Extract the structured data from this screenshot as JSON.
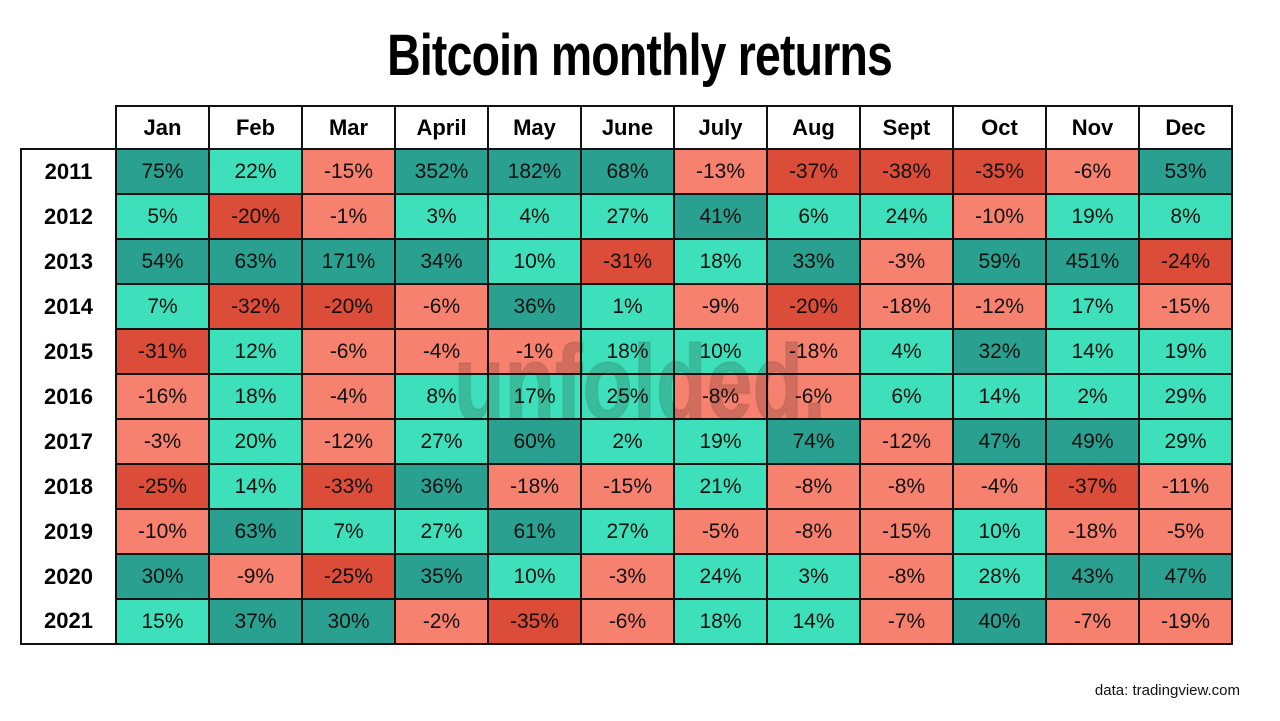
{
  "title": "Bitcoin monthly returns",
  "watermark": "unfolded.",
  "footer": "data: tradingview.com",
  "colors": {
    "strong_positive": "#2aa090",
    "positive": "#3de0bb",
    "negative": "#f6816f",
    "strong_negative": "#db4d38",
    "grid": "#121212"
  },
  "color_rules": {
    "strong_positive_min": 30,
    "strong_negative_max": -20
  },
  "chart_data": {
    "type": "heatmap",
    "title": "Bitcoin monthly returns",
    "unit": "%",
    "legend": "none",
    "columns": [
      "Jan",
      "Feb",
      "Mar",
      "April",
      "May",
      "June",
      "July",
      "Aug",
      "Sept",
      "Oct",
      "Nov",
      "Dec"
    ],
    "rows": [
      "2011",
      "2012",
      "2013",
      "2014",
      "2015",
      "2016",
      "2017",
      "2018",
      "2019",
      "2020",
      "2021"
    ],
    "values": [
      [
        75,
        22,
        -15,
        352,
        182,
        68,
        -13,
        -37,
        -38,
        -35,
        -6,
        53
      ],
      [
        5,
        -20,
        -1,
        3,
        4,
        27,
        41,
        6,
        24,
        -10,
        19,
        8
      ],
      [
        54,
        63,
        171,
        34,
        10,
        -31,
        18,
        33,
        -3,
        59,
        451,
        -24
      ],
      [
        7,
        -32,
        -20,
        -6,
        36,
        1,
        -9,
        -20,
        -18,
        -12,
        17,
        -15
      ],
      [
        -31,
        12,
        -6,
        -4,
        -1,
        18,
        10,
        -18,
        4,
        32,
        14,
        19
      ],
      [
        -16,
        18,
        -4,
        8,
        17,
        25,
        -8,
        -6,
        6,
        14,
        2,
        29
      ],
      [
        -3,
        20,
        -12,
        27,
        60,
        2,
        19,
        74,
        -12,
        47,
        49,
        29
      ],
      [
        -25,
        14,
        -33,
        36,
        -18,
        -15,
        21,
        -8,
        -8,
        -4,
        -37,
        -11
      ],
      [
        -10,
        63,
        7,
        27,
        61,
        27,
        -5,
        -8,
        -15,
        10,
        -18,
        -5
      ],
      [
        30,
        -9,
        -25,
        35,
        10,
        -3,
        24,
        3,
        -8,
        28,
        43,
        47
      ],
      [
        15,
        37,
        30,
        -2,
        -35,
        -6,
        18,
        14,
        -7,
        40,
        -7,
        -19
      ]
    ]
  }
}
